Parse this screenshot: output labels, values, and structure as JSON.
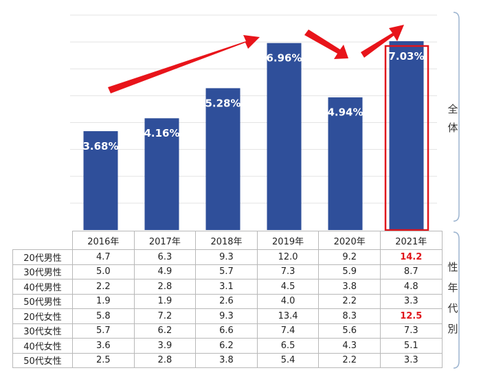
{
  "chart_data": {
    "type": "bar",
    "categories": [
      "2016年",
      "2017年",
      "2018年",
      "2019年",
      "2020年",
      "2021年"
    ],
    "values": [
      3.68,
      4.16,
      5.28,
      6.96,
      4.94,
      7.03
    ],
    "value_labels": [
      "3.68%",
      "4.16%",
      "5.28%",
      "6.96%",
      "4.94%",
      "7.03%"
    ],
    "ylim": [
      0,
      8
    ],
    "grid": true,
    "highlight_category": "2021年",
    "highlight_color": "#e0161c",
    "bar_color": "#2f4f9a"
  },
  "side_labels": {
    "top": [
      "全",
      "体"
    ],
    "bottom": [
      "性",
      "年",
      "代",
      "別"
    ]
  },
  "table": {
    "headers": [
      "2016年",
      "2017年",
      "2018年",
      "2019年",
      "2020年",
      "2021年"
    ],
    "rows": [
      {
        "label": "20代男性",
        "values": [
          "4.7",
          "6.3",
          "9.3",
          "12.0",
          "9.2",
          "14.2"
        ],
        "highlight": [
          5
        ]
      },
      {
        "label": "30代男性",
        "values": [
          "5.0",
          "4.9",
          "5.7",
          "7.3",
          "5.9",
          "8.7"
        ],
        "highlight": []
      },
      {
        "label": "40代男性",
        "values": [
          "2.2",
          "2.8",
          "3.1",
          "4.5",
          "3.8",
          "4.8"
        ],
        "highlight": []
      },
      {
        "label": "50代男性",
        "values": [
          "1.9",
          "1.9",
          "2.6",
          "4.0",
          "2.2",
          "3.3"
        ],
        "highlight": []
      },
      {
        "label": "20代女性",
        "values": [
          "5.8",
          "7.2",
          "9.3",
          "13.4",
          "8.3",
          "12.5"
        ],
        "highlight": [
          5
        ]
      },
      {
        "label": "30代女性",
        "values": [
          "5.7",
          "6.2",
          "6.6",
          "7.4",
          "5.6",
          "7.3"
        ],
        "highlight": []
      },
      {
        "label": "40代女性",
        "values": [
          "3.6",
          "3.9",
          "6.2",
          "6.5",
          "4.3",
          "5.1"
        ],
        "highlight": []
      },
      {
        "label": "50代女性",
        "values": [
          "2.5",
          "2.8",
          "3.8",
          "5.4",
          "2.2",
          "3.3"
        ],
        "highlight": []
      }
    ]
  }
}
